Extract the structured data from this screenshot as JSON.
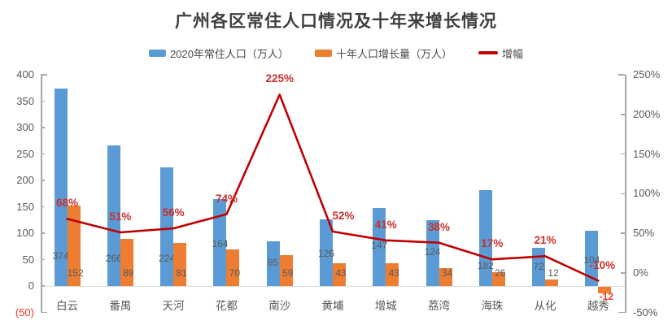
{
  "title": "广州各区常住人口情况及十年来增长情况",
  "legend": {
    "items": [
      {
        "label": "2020年常住人口（万人）",
        "swatch": "bar",
        "color": "#5B9BD5"
      },
      {
        "label": "十年人口增长量（万人）",
        "swatch": "bar",
        "color": "#ED7D31"
      },
      {
        "label": "增幅",
        "swatch": "line",
        "color": "#C00000"
      }
    ]
  },
  "chart_data": {
    "type": "bar+line combo",
    "categories": [
      "白云",
      "番禺",
      "天河",
      "花都",
      "南沙",
      "黄埔",
      "增城",
      "荔湾",
      "海珠",
      "从化",
      "越秀"
    ],
    "series": [
      {
        "name": "2020年常住人口（万人）",
        "type": "bar",
        "axis": "left",
        "color": "#5B9BD5",
        "label_color": "#595959",
        "values": [
          374,
          266,
          224,
          164,
          85,
          126,
          147,
          124,
          182,
          72,
          104
        ]
      },
      {
        "name": "十年人口增长量（万人）",
        "type": "bar",
        "axis": "left",
        "color": "#ED7D31",
        "label_color": "#595959",
        "negative_label_color": "#ED3325",
        "values": [
          152,
          89,
          81,
          70,
          59,
          43,
          43,
          34,
          26,
          12,
          -12
        ]
      },
      {
        "name": "增幅",
        "type": "line",
        "axis": "right",
        "color": "#C00000",
        "label_color": "#C9302C",
        "values_pct": [
          68,
          51,
          56,
          74,
          225,
          52,
          41,
          38,
          17,
          21,
          -10
        ],
        "labels": [
          "68%",
          "51%",
          "56%",
          "74%",
          "225%",
          "52%",
          "41%",
          "38%",
          "17%",
          "21%",
          "-10%"
        ]
      }
    ],
    "left_axis": {
      "min": -50,
      "max": 400,
      "step": 50,
      "ticks": [
        "400",
        "350",
        "300",
        "250",
        "200",
        "150",
        "100",
        "50",
        "0",
        "(50)"
      ],
      "tick_color": "#595959",
      "negative_tick_color": "#ED3325"
    },
    "right_axis": {
      "min": -50,
      "max": 250,
      "step": 50,
      "ticks": [
        "250%",
        "200%",
        "150%",
        "100%",
        "50%",
        "0%",
        "-50%"
      ],
      "tick_color": "#595959"
    },
    "grid": "none",
    "legend_position": "top"
  }
}
